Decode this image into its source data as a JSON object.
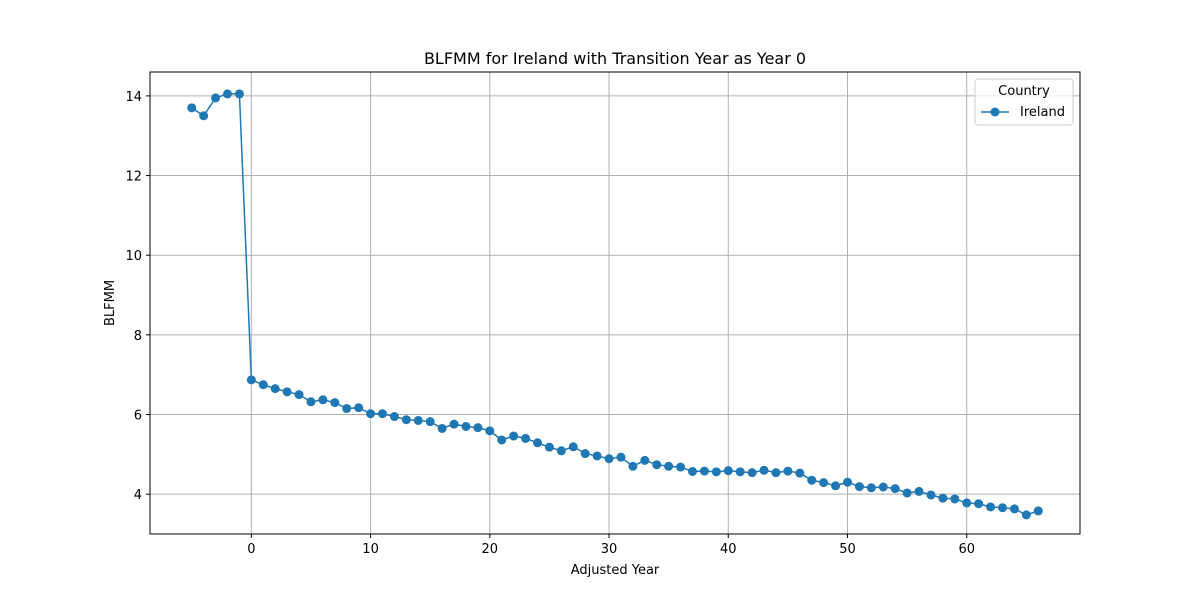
{
  "chart_data": {
    "type": "line",
    "title": "BLFMM for Ireland with Transition Year as Year 0",
    "xlabel": "Adjusted Year",
    "ylabel": "BLFMM",
    "xlim": [
      -8.5,
      69.5
    ],
    "ylim": [
      3.0,
      14.6
    ],
    "xticks": [
      0,
      10,
      20,
      30,
      40,
      50,
      60
    ],
    "yticks": [
      4,
      6,
      8,
      10,
      12,
      14
    ],
    "grid": true,
    "legend": {
      "title": "Country",
      "placement": "top-right"
    },
    "colors": {
      "series": "#1f77b4",
      "grid": "#b0b0b0"
    },
    "series": [
      {
        "name": "Ireland",
        "marker": "circle",
        "x": [
          -5,
          -4,
          -3,
          -2,
          -1,
          0,
          1,
          2,
          3,
          4,
          5,
          6,
          7,
          8,
          9,
          10,
          11,
          12,
          13,
          14,
          15,
          16,
          17,
          18,
          19,
          20,
          21,
          22,
          23,
          24,
          25,
          26,
          27,
          28,
          29,
          30,
          31,
          32,
          33,
          34,
          35,
          36,
          37,
          38,
          39,
          40,
          41,
          42,
          43,
          44,
          45,
          46,
          47,
          48,
          49,
          50,
          51,
          52,
          53,
          54,
          55,
          56,
          57,
          58,
          59,
          60,
          61,
          62,
          63,
          64,
          65,
          66
        ],
        "values": [
          13.7,
          13.5,
          13.95,
          14.05,
          14.05,
          6.87,
          6.75,
          6.65,
          6.57,
          6.5,
          6.32,
          6.37,
          6.3,
          6.15,
          6.17,
          6.02,
          6.02,
          5.95,
          5.87,
          5.85,
          5.82,
          5.65,
          5.76,
          5.7,
          5.67,
          5.59,
          5.36,
          5.46,
          5.4,
          5.29,
          5.18,
          5.09,
          5.19,
          5.02,
          4.96,
          4.89,
          4.93,
          4.7,
          4.85,
          4.74,
          4.7,
          4.68,
          4.57,
          4.58,
          4.56,
          4.59,
          4.56,
          4.54,
          4.6,
          4.54,
          4.58,
          4.53,
          4.35,
          4.29,
          4.21,
          4.3,
          4.19,
          4.16,
          4.18,
          4.14,
          4.03,
          4.07,
          3.98,
          3.9,
          3.88,
          3.78,
          3.76,
          3.68,
          3.66,
          3.63,
          3.48,
          3.58
        ]
      }
    ]
  }
}
